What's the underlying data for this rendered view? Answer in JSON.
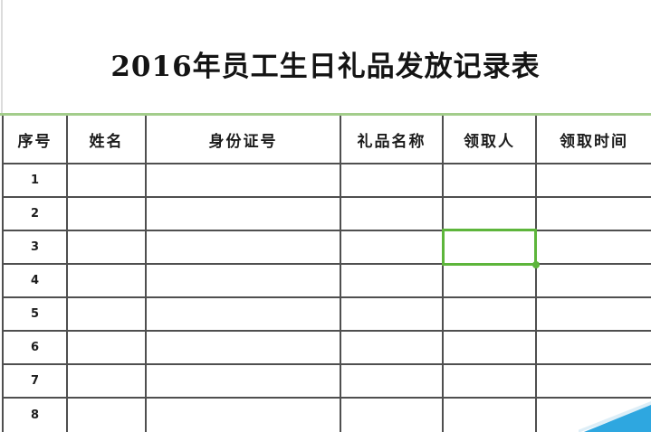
{
  "title": "2016年员工生日礼品发放记录表",
  "table": {
    "columns": [
      {
        "key": "xuhao",
        "label": "序号"
      },
      {
        "key": "xingming",
        "label": "姓名"
      },
      {
        "key": "shenfenzhenghao",
        "label": "身份证号"
      },
      {
        "key": "lipinmingcheng",
        "label": "礼品名称"
      },
      {
        "key": "lingquren",
        "label": "领取人"
      },
      {
        "key": "lingqushijian",
        "label": "领取时间"
      }
    ],
    "rows": [
      {
        "no": "1",
        "cells": [
          "",
          "",
          "",
          "",
          ""
        ]
      },
      {
        "no": "2",
        "cells": [
          "",
          "",
          "",
          "",
          ""
        ]
      },
      {
        "no": "3",
        "cells": [
          "",
          "",
          "",
          "",
          ""
        ]
      },
      {
        "no": "4",
        "cells": [
          "",
          "",
          "",
          "",
          ""
        ]
      },
      {
        "no": "5",
        "cells": [
          "",
          "",
          "",
          "",
          ""
        ]
      },
      {
        "no": "6",
        "cells": [
          "",
          "",
          "",
          "",
          ""
        ]
      },
      {
        "no": "7",
        "cells": [
          "",
          "",
          "",
          "",
          ""
        ]
      },
      {
        "no": "8",
        "cells": [
          "",
          "",
          "",
          "",
          ""
        ]
      }
    ],
    "selection": {
      "row_no": "3",
      "column_label": "领取人"
    }
  },
  "colors": {
    "grid_line": "#4f4f4f",
    "selection_green": "#5db53b",
    "top_green_line": "#a3cd8b",
    "corner_triangle": "#2ea7e0",
    "triangle_halo": "#ddeef7"
  }
}
